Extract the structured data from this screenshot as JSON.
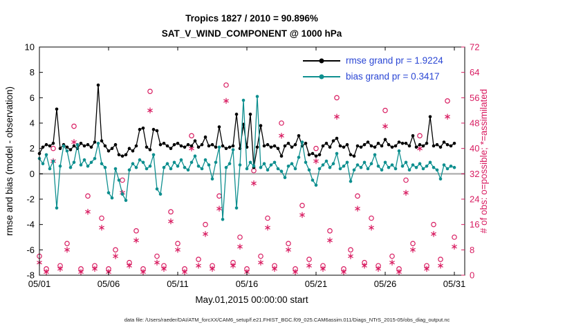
{
  "footer": {
    "text": "data file: /Users/raeder/DAI/ATM_forcXX/CAM6_setup/f.e21.FHIST_BGC.f09_025.CAM6assim.011/Diags_NTrS_2015-05/obs_diag_output.nc"
  },
  "chart_data": {
    "type": "line",
    "title": "Tropics 1827 / 2010 = 90.896%",
    "subtitle": "SAT_V_WIND_COMPONENT @ 1000 hPa",
    "xlabel": "May.01,2015 00:00:00 start",
    "ylabel_left": "rmse and bias (model - observation)",
    "ylabel_right": "# of obs: o=possible; *=assimilated",
    "x_tick_labels": [
      "05/01",
      "05/06",
      "05/11",
      "05/16",
      "05/21",
      "05/26",
      "05/31"
    ],
    "x_tick_days": [
      0,
      5,
      10,
      15,
      20,
      25,
      30
    ],
    "x_range_days": [
      0,
      30.75
    ],
    "ylim_left": [
      -8,
      10
    ],
    "yticks_left": [
      -8,
      -6,
      -4,
      -2,
      0,
      2,
      4,
      6,
      8,
      10
    ],
    "ylim_right": [
      0,
      72
    ],
    "yticks_right": [
      0,
      8,
      16,
      24,
      32,
      40,
      48,
      56,
      64,
      72
    ],
    "grid": "off",
    "legend_position": "top-right-inside",
    "legend_text_color": "#2a46d4",
    "zero_line_color": "#b4b4b4",
    "legend": [
      {
        "label": "rmse grand pr = 1.9224"
      },
      {
        "label": "bias grand pr = 0.3417"
      }
    ],
    "series": [
      {
        "name": "rmse",
        "color": "#000000",
        "x_start_day": 0,
        "x_step_days": 0.25,
        "values": [
          1.6,
          2.1,
          2.3,
          2.2,
          2.4,
          5.1,
          2.0,
          2.3,
          2.1,
          1.9,
          2.2,
          2.0,
          2.4,
          2.2,
          2.3,
          2.1,
          2.5,
          7.0,
          2.6,
          2.2,
          1.8,
          2.0,
          2.3,
          1.5,
          1.4,
          1.5,
          2.0,
          1.8,
          2.2,
          3.5,
          3.6,
          2.1,
          1.9,
          3.5,
          3.4,
          2.3,
          2.4,
          2.2,
          2.0,
          2.3,
          2.4,
          2.2,
          2.1,
          2.3,
          2.2,
          2.6,
          2.1,
          2.3,
          2.9,
          2.2,
          2.3,
          2.1,
          3.7,
          2.2,
          2.0,
          2.1,
          2.2,
          4.7,
          2.0,
          3.9,
          2.1,
          4.7,
          0.5,
          2.1,
          3.8,
          2.2,
          2.3,
          2.1,
          2.2,
          2.0,
          1.4,
          2.2,
          2.4,
          2.1,
          2.3,
          3.0,
          2.2,
          2.4,
          1.5,
          1.6,
          1.4,
          1.5,
          2.2,
          2.4,
          2.1,
          2.6,
          2.8,
          2.2,
          2.1,
          2.3,
          1.5,
          1.4,
          2.2,
          2.1,
          2.3,
          2.5,
          2.2,
          2.1,
          2.4,
          2.2,
          2.7,
          2.3,
          2.1,
          2.2,
          2.5,
          2.4,
          2.4,
          2.2,
          3.0,
          2.1,
          2.3,
          2.2,
          2.4,
          4.5,
          2.2,
          2.3,
          2.1,
          2.5,
          2.3,
          2.2,
          2.4
        ]
      },
      {
        "name": "bias",
        "color": "#0e8f8f",
        "x_start_day": 0,
        "x_step_days": 0.25,
        "values": [
          1.2,
          0.8,
          1.5,
          0.4,
          1.0,
          -2.7,
          0.6,
          2.2,
          1.8,
          0.5,
          0.9,
          2.3,
          0.7,
          1.1,
          0.6,
          0.9,
          1.2,
          2.4,
          0.8,
          0.5,
          -1.5,
          -1.9,
          0.4,
          -0.5,
          -1.6,
          -2.1,
          0.3,
          0.8,
          0.5,
          1.1,
          0.9,
          0.4,
          0.6,
          1.5,
          -1.2,
          -1.6,
          0.5,
          0.8,
          0.4,
          0.9,
          0.6,
          1.1,
          0.5,
          0.3,
          0.9,
          1.4,
          0.6,
          0.4,
          1.1,
          0.7,
          -0.4,
          0.9,
          2.1,
          -3.6,
          0.5,
          0.8,
          1.9,
          -2.7,
          0.7,
          5.8,
          0.4,
          0.9,
          0.6,
          6.1,
          0.5,
          0.8,
          0.3,
          0.7,
          0.9,
          0.4,
          0.2,
          -0.3,
          0.6,
          0.8,
          0.4,
          1.3,
          2.5,
          0.9,
          0.3,
          -0.5,
          -0.9,
          0.4,
          0.7,
          1.0,
          0.5,
          0.8,
          1.6,
          0.4,
          0.6,
          0.9,
          -0.6,
          0.3,
          0.7,
          0.5,
          0.9,
          0.4,
          0.8,
          1.5,
          0.6,
          0.3,
          0.9,
          0.5,
          0.7,
          0.4,
          1.8,
          0.6,
          0.9,
          0.3,
          0.7,
          0.5,
          0.8,
          0.4,
          0.6,
          0.9,
          0.5,
          0.3,
          -0.4,
          0.7,
          0.4,
          0.6,
          0.5
        ]
      }
    ],
    "obs_counts": {
      "color": "#d81b60",
      "x_start_day": 0,
      "x_step_days": 0.5,
      "possible": [
        6,
        2,
        40,
        3,
        10,
        47,
        2,
        25,
        3,
        18,
        2,
        8,
        30,
        4,
        14,
        2,
        58,
        6,
        3,
        20,
        10,
        2,
        44,
        5,
        16,
        3,
        25,
        60,
        4,
        12,
        2,
        33,
        6,
        18,
        3,
        48,
        10,
        2,
        22,
        5,
        40,
        3,
        14,
        56,
        2,
        8,
        25,
        4,
        18,
        3,
        52,
        6,
        2,
        30,
        10,
        44,
        3,
        16,
        5,
        55,
        12
      ],
      "assimilated": [
        4,
        1,
        36,
        2,
        8,
        42,
        1,
        20,
        2,
        15,
        1,
        6,
        26,
        3,
        11,
        1,
        52,
        4,
        2,
        17,
        8,
        1,
        40,
        3,
        13,
        2,
        21,
        55,
        3,
        9,
        1,
        29,
        4,
        15,
        2,
        44,
        8,
        1,
        19,
        3,
        36,
        2,
        11,
        50,
        1,
        6,
        21,
        3,
        15,
        2,
        47,
        4,
        1,
        26,
        8,
        40,
        2,
        13,
        3,
        50,
        9
      ]
    }
  }
}
